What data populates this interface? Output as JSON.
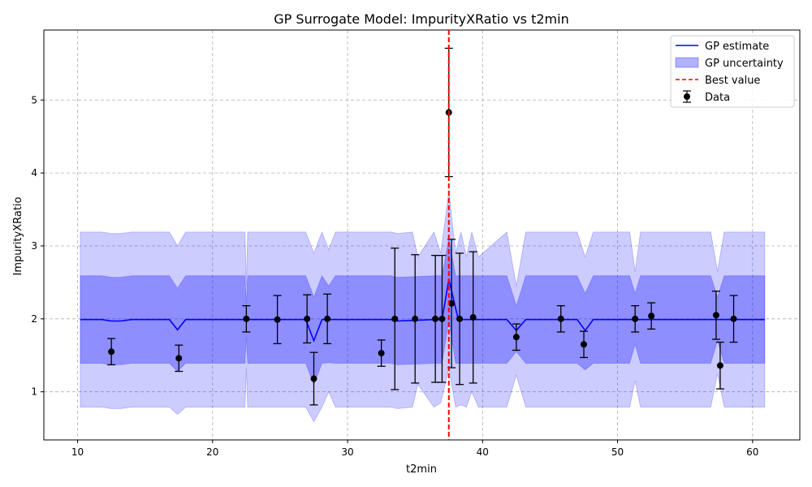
{
  "chart_data": {
    "type": "line",
    "title": "GP Surrogate Model: ImpurityXRatio vs t2min",
    "xlabel": "t2min",
    "ylabel": "ImpurityXRatio",
    "xlim": [
      7.5,
      63.5
    ],
    "ylim": [
      0.34,
      5.96
    ],
    "xticks": [
      10,
      20,
      30,
      40,
      50,
      60
    ],
    "yticks": [
      1,
      2,
      3,
      4,
      5
    ],
    "grid": true,
    "legend_position": "top-right",
    "legend": [
      "GP estimate",
      "GP uncertainty",
      "Best value",
      "Data"
    ],
    "best_value_x": 37.5,
    "colors": {
      "gp_line": "#0000ff",
      "band": "#0000ff",
      "best": "#ff0000",
      "data": "#000000"
    },
    "gp_estimate": {
      "x": [
        10.2,
        11.8,
        12.5,
        13.2,
        14,
        16.8,
        17.4,
        18,
        22.4,
        26.9,
        27.5,
        28.1,
        33.2,
        33.7,
        36.4,
        37.0,
        37.5,
        38.2,
        41.8,
        42.5,
        43.2,
        47.0,
        47.6,
        48.2,
        60.9
      ],
      "y": [
        1.99,
        1.99,
        1.97,
        1.97,
        1.99,
        1.99,
        1.85,
        1.99,
        1.99,
        1.99,
        1.7,
        1.99,
        1.99,
        1.97,
        1.99,
        1.99,
        2.54,
        1.99,
        1.99,
        1.84,
        1.99,
        1.99,
        1.84,
        1.99,
        1.99
      ]
    },
    "band_2sigma": {
      "x": [
        10.2,
        11.8,
        12.5,
        13.2,
        14,
        16.8,
        17.4,
        18,
        22.4,
        22.5,
        22.6,
        26.9,
        27.5,
        28.1,
        28.6,
        29.1,
        33.2,
        33.7,
        34.8,
        35.2,
        36.4,
        36.9,
        37.5,
        38.0,
        38.4,
        38.8,
        39.2,
        39.7,
        41.8,
        42.5,
        43.2,
        47.0,
        47.6,
        48.2,
        50.9,
        51.3,
        51.7,
        56.9,
        57.4,
        57.9,
        60.9
      ],
      "upper": [
        3.19,
        3.19,
        3.17,
        3.17,
        3.19,
        3.19,
        3.0,
        3.19,
        3.19,
        2.45,
        3.19,
        3.19,
        2.9,
        3.19,
        2.95,
        3.19,
        3.19,
        3.17,
        3.19,
        2.85,
        3.19,
        2.9,
        3.75,
        2.9,
        3.19,
        2.85,
        3.19,
        2.85,
        3.19,
        2.45,
        3.19,
        3.19,
        2.85,
        3.19,
        3.19,
        2.65,
        3.19,
        3.19,
        2.65,
        3.19,
        3.19
      ],
      "lower": [
        0.79,
        0.79,
        0.77,
        0.77,
        0.79,
        0.79,
        0.69,
        0.79,
        0.79,
        1.32,
        0.79,
        0.79,
        0.59,
        0.79,
        1.0,
        0.79,
        0.79,
        0.77,
        0.79,
        1.1,
        0.79,
        0.85,
        1.32,
        0.79,
        0.82,
        0.79,
        1.0,
        0.79,
        0.79,
        1.23,
        0.79,
        0.79,
        0.79,
        0.79,
        0.79,
        1.15,
        0.79,
        0.79,
        1.25,
        0.79,
        0.79
      ]
    },
    "band_1sigma": {
      "x": [
        10.2,
        11.8,
        12.5,
        13.2,
        14,
        16.8,
        17.4,
        18,
        22.4,
        22.5,
        22.6,
        26.9,
        27.5,
        28.1,
        28.6,
        29.1,
        33.2,
        33.7,
        36.4,
        37.0,
        37.5,
        38.0,
        41.8,
        42.5,
        43.2,
        47.0,
        47.6,
        48.2,
        50.9,
        51.3,
        51.7,
        56.9,
        57.4,
        57.9,
        60.9
      ],
      "upper": [
        2.59,
        2.59,
        2.57,
        2.57,
        2.59,
        2.59,
        2.42,
        2.59,
        2.59,
        2.2,
        2.59,
        2.59,
        2.3,
        2.59,
        2.45,
        2.59,
        2.59,
        2.57,
        2.59,
        2.59,
        3.1,
        2.59,
        2.59,
        2.18,
        2.59,
        2.59,
        2.35,
        2.59,
        2.59,
        2.35,
        2.59,
        2.59,
        2.3,
        2.59,
        2.59
      ],
      "lower": [
        1.39,
        1.39,
        1.37,
        1.37,
        1.39,
        1.39,
        1.28,
        1.39,
        1.39,
        1.75,
        1.39,
        1.39,
        1.1,
        1.39,
        1.4,
        1.39,
        1.39,
        1.37,
        1.39,
        1.39,
        1.98,
        1.39,
        1.39,
        1.55,
        1.39,
        1.39,
        1.3,
        1.39,
        1.39,
        1.65,
        1.39,
        1.39,
        1.7,
        1.39,
        1.39
      ]
    },
    "data_points": [
      {
        "x": 12.5,
        "y": 1.55,
        "err": 0.18
      },
      {
        "x": 17.5,
        "y": 1.46,
        "err": 0.18
      },
      {
        "x": 22.5,
        "y": 2.0,
        "err": 0.18
      },
      {
        "x": 24.8,
        "y": 1.99,
        "err": 0.33
      },
      {
        "x": 27.0,
        "y": 2.0,
        "err": 0.33
      },
      {
        "x": 27.5,
        "y": 1.18,
        "err": 0.36
      },
      {
        "x": 28.5,
        "y": 2.0,
        "err": 0.34
      },
      {
        "x": 32.5,
        "y": 1.53,
        "err": 0.18
      },
      {
        "x": 33.5,
        "y": 2.0,
        "err": 0.97
      },
      {
        "x": 35.0,
        "y": 2.0,
        "err": 0.88
      },
      {
        "x": 36.5,
        "y": 2.0,
        "err": 0.87
      },
      {
        "x": 37.0,
        "y": 2.0,
        "err": 0.87
      },
      {
        "x": 37.5,
        "y": 4.83,
        "err": 0.88
      },
      {
        "x": 37.7,
        "y": 2.21,
        "err": 0.88
      },
      {
        "x": 38.3,
        "y": 2.0,
        "err": 0.9
      },
      {
        "x": 39.3,
        "y": 2.02,
        "err": 0.9
      },
      {
        "x": 42.5,
        "y": 1.75,
        "err": 0.18
      },
      {
        "x": 45.8,
        "y": 2.0,
        "err": 0.18
      },
      {
        "x": 47.5,
        "y": 1.65,
        "err": 0.18
      },
      {
        "x": 51.3,
        "y": 2.0,
        "err": 0.18
      },
      {
        "x": 52.5,
        "y": 2.04,
        "err": 0.18
      },
      {
        "x": 57.3,
        "y": 2.05,
        "err": 0.33
      },
      {
        "x": 57.6,
        "y": 1.36,
        "err": 0.32
      },
      {
        "x": 58.6,
        "y": 2.0,
        "err": 0.32
      }
    ]
  }
}
